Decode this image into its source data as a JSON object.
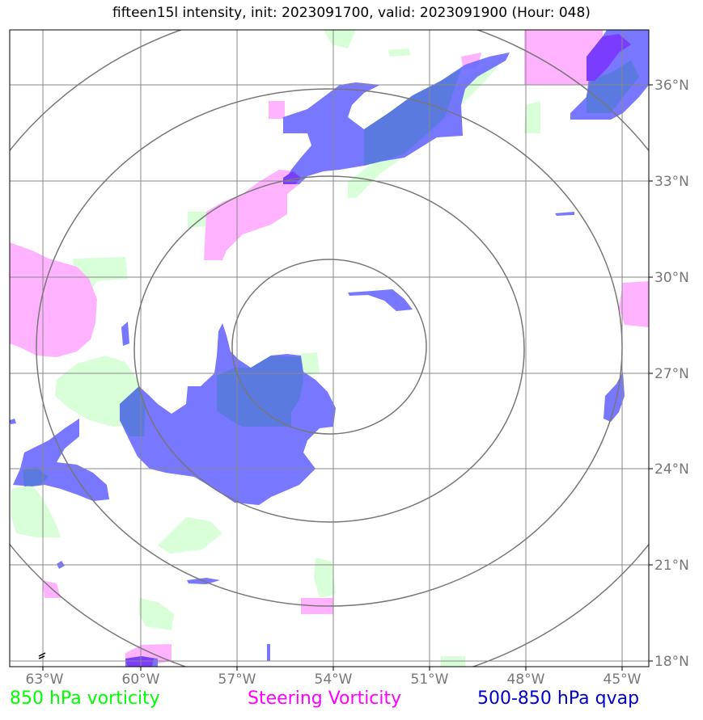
{
  "title": "fifteen15l intensity, init: 2023091700, valid: 2023091900 (Hour: 048)",
  "map": {
    "lon_ticks": [
      "63°W",
      "60°W",
      "57°W",
      "54°W",
      "51°W",
      "48°W",
      "45°W"
    ],
    "lat_ticks": [
      "36°N",
      "33°N",
      "30°N",
      "27°N",
      "24°N",
      "21°N",
      "18°N"
    ],
    "range_rings": 4
  },
  "legend": [
    {
      "label": "850 hPa vorticity",
      "color": "#00ff00"
    },
    {
      "label": "Steering Vorticity",
      "color": "#ff00ff"
    },
    {
      "label": "500-850 hPa qvap",
      "color": "#0000cc"
    }
  ],
  "colors": {
    "vorticity_850": "#d8ffd8",
    "steering_vorticity": "#ffb3ff",
    "qvap": "#6b6bff",
    "overlap": "#5a7ae0",
    "grid": "#888888",
    "rings": "#777777"
  }
}
